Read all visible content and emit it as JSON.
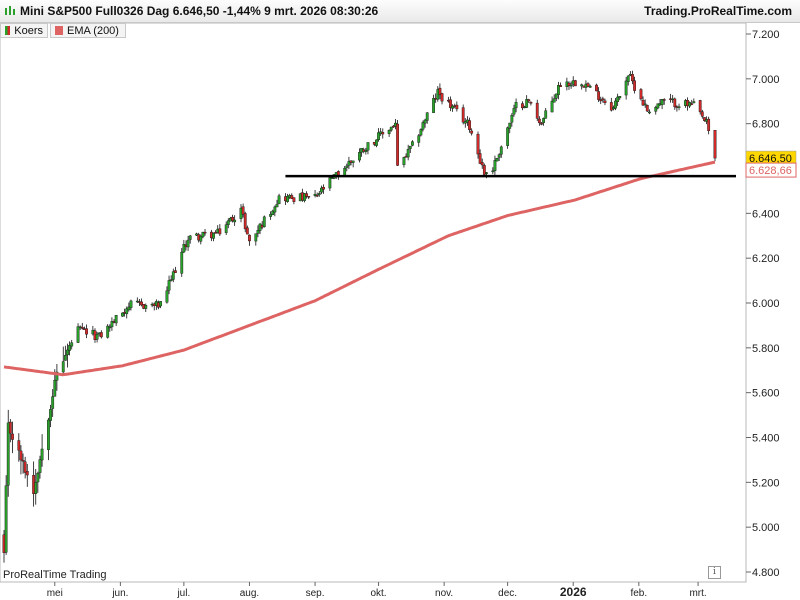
{
  "header": {
    "title": "Mini S&P500 Full0326 Dag 6.646,50 -1,44% 9 mrt. 2026 08:30:26",
    "brand": "Trading.ProRealTime.com"
  },
  "legend": {
    "price_label": "Koers",
    "ema_label": "EMA (200)"
  },
  "watermark": "ProRealTime Trading",
  "info_icon": "i",
  "colors": {
    "up": "#2aa12a",
    "down": "#d02a2a",
    "ema": "#de6464",
    "current_badge": "#ffd700",
    "support_line": "#000000"
  },
  "chart_data": {
    "type": "candlestick",
    "y_axis": {
      "ticks": [
        7200,
        7000,
        6800,
        6600,
        6400,
        6200,
        6000,
        5800,
        5600,
        5400,
        5200,
        5000,
        4800
      ],
      "tick_labels": [
        "7.200",
        "7.000",
        "6.800",
        "6.600",
        "6.400",
        "6.200",
        "6.000",
        "5.800",
        "5.600",
        "5.400",
        "5.200",
        "5.000",
        "4.800"
      ],
      "range": [
        4800,
        7200
      ]
    },
    "x_axis": {
      "month_labels": [
        "mei",
        "jun.",
        "jul.",
        "aug.",
        "sep.",
        "okt.",
        "nov.",
        "dec.",
        "2026",
        "feb.",
        "mrt."
      ],
      "range": [
        "2025-04-07",
        "2026-03-09"
      ]
    },
    "current_price": {
      "value": 6646.5,
      "label": "6.646,50"
    },
    "ema_current": {
      "value": 6628.66,
      "label": "6.628,66"
    },
    "support_line": {
      "value": 6566,
      "from": "2025-08-18",
      "to": "2026-03-09"
    },
    "price_anchors": [
      {
        "date": "2025-04-07",
        "close": 4880
      },
      {
        "date": "2025-04-09",
        "close": 5450
      },
      {
        "date": "2025-04-21",
        "close": 5160
      },
      {
        "date": "2025-05-02",
        "close": 5690
      },
      {
        "date": "2025-05-12",
        "close": 5880
      },
      {
        "date": "2025-05-22",
        "close": 5850
      },
      {
        "date": "2025-06-05",
        "close": 5990
      },
      {
        "date": "2025-06-20",
        "close": 5990
      },
      {
        "date": "2025-07-03",
        "close": 6290
      },
      {
        "date": "2025-07-17",
        "close": 6310
      },
      {
        "date": "2025-07-28",
        "close": 6420
      },
      {
        "date": "2025-08-01",
        "close": 6270
      },
      {
        "date": "2025-08-15",
        "close": 6470
      },
      {
        "date": "2025-09-01",
        "close": 6470
      },
      {
        "date": "2025-09-10",
        "close": 6560
      },
      {
        "date": "2025-09-24",
        "close": 6690
      },
      {
        "date": "2025-10-09",
        "close": 6800
      },
      {
        "date": "2025-10-10",
        "close": 6600
      },
      {
        "date": "2025-10-17",
        "close": 6700
      },
      {
        "date": "2025-10-29",
        "close": 6940
      },
      {
        "date": "2025-11-04",
        "close": 6880
      },
      {
        "date": "2025-11-13",
        "close": 6790
      },
      {
        "date": "2025-11-20",
        "close": 6580
      },
      {
        "date": "2025-11-24",
        "close": 6600
      },
      {
        "date": "2025-12-05",
        "close": 6880
      },
      {
        "date": "2025-12-11",
        "close": 6900
      },
      {
        "date": "2025-12-17",
        "close": 6800
      },
      {
        "date": "2025-12-26",
        "close": 6980
      },
      {
        "date": "2026-01-05",
        "close": 6990
      },
      {
        "date": "2026-01-20",
        "close": 6870
      },
      {
        "date": "2026-01-27",
        "close": 7020
      },
      {
        "date": "2026-02-05",
        "close": 6860
      },
      {
        "date": "2026-02-13",
        "close": 6900
      },
      {
        "date": "2026-02-27",
        "close": 6880
      },
      {
        "date": "2026-03-05",
        "close": 6800
      },
      {
        "date": "2026-03-09",
        "close": 6646.5
      }
    ],
    "ema_anchors": [
      {
        "date": "2025-04-07",
        "value": 5715
      },
      {
        "date": "2025-05-05",
        "value": 5680
      },
      {
        "date": "2025-06-02",
        "value": 5720
      },
      {
        "date": "2025-07-01",
        "value": 5790
      },
      {
        "date": "2025-08-01",
        "value": 5900
      },
      {
        "date": "2025-09-01",
        "value": 6010
      },
      {
        "date": "2025-10-01",
        "value": 6150
      },
      {
        "date": "2025-11-03",
        "value": 6300
      },
      {
        "date": "2025-12-01",
        "value": 6390
      },
      {
        "date": "2026-01-02",
        "value": 6460
      },
      {
        "date": "2026-02-02",
        "value": 6555
      },
      {
        "date": "2026-03-09",
        "value": 6628.66
      }
    ]
  }
}
